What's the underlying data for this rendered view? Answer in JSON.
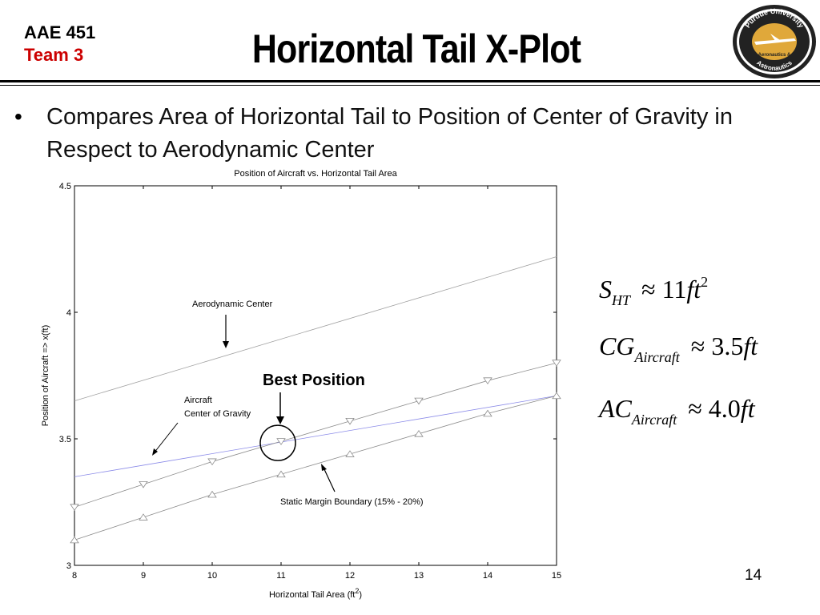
{
  "header": {
    "course": "AAE 451",
    "team": "Team 3",
    "title": "Horizontal Tail X-Plot",
    "logo_text_top": "Purdue University",
    "logo_text_mid": "Aeronautics &",
    "logo_text_bottom": "Astronautics"
  },
  "bullet": "Compares Area of Horizontal Tail to Position of Center of Gravity in Respect to Aerodynamic Center",
  "chart_data": {
    "type": "line",
    "title": "Position of Aircraft vs. Horizontal Tail Area",
    "xlabel_base": "Horizontal Tail Area (ft",
    "xlabel_sup": "2",
    "xlabel_close": ")",
    "ylabel": "Position of Aircraft => x(ft)",
    "xlim": [
      8,
      15
    ],
    "ylim": [
      3,
      4.5
    ],
    "x_ticks": [
      "8",
      "9",
      "10",
      "11",
      "12",
      "13",
      "14",
      "15"
    ],
    "y_ticks": [
      "3",
      "3.5",
      "4",
      "4.5"
    ],
    "grid": false,
    "series": [
      {
        "label": "Aerodynamic Center",
        "x": [
          8,
          15
        ],
        "y": [
          3.65,
          4.22
        ],
        "color": "#a0a0a0"
      },
      {
        "label": "Aircraft Center of Gravity",
        "x": [
          8,
          15
        ],
        "y": [
          3.35,
          3.67
        ],
        "color": "#8a8ae8"
      },
      {
        "label": "",
        "x": [
          8,
          9,
          10,
          11,
          12,
          13,
          14,
          15
        ],
        "y": [
          3.23,
          3.32,
          3.41,
          3.49,
          3.57,
          3.65,
          3.73,
          3.8
        ],
        "marker": "triangle-down",
        "color": "#8c8c8c"
      },
      {
        "label": "",
        "x": [
          8,
          9,
          10,
          11,
          12,
          13,
          14,
          15
        ],
        "y": [
          3.1,
          3.19,
          3.28,
          3.36,
          3.44,
          3.52,
          3.6,
          3.67
        ],
        "marker": "triangle-up",
        "color": "#8c8c8c"
      }
    ],
    "annotations": {
      "aerodynamic_center": "Aerodynamic Center",
      "cg_line1": "Aircraft",
      "cg_line2": "Center of Gravity",
      "best_position": "Best  Position",
      "static_margin": "Static Margin Boundary (15% - 20%)"
    },
    "best_point": {
      "x": 11,
      "y": 3.49
    }
  },
  "formulas": {
    "s_ht": {
      "var": "S",
      "sub": "HT",
      "approx": "≈",
      "value": "11",
      "unit": "ft",
      "sup": "2"
    },
    "cg": {
      "var": "CG",
      "sub": "Aircraft",
      "approx": "≈",
      "value": "3.5",
      "unit": "ft"
    },
    "ac": {
      "var": "AC",
      "sub": "Aircraft",
      "approx": "≈",
      "value": "4.0",
      "unit": "ft"
    }
  },
  "page_number": "14",
  "colors": {
    "team": "#cc0000",
    "seal_gold": "#e0a83a",
    "seal_ring": "#222222"
  }
}
